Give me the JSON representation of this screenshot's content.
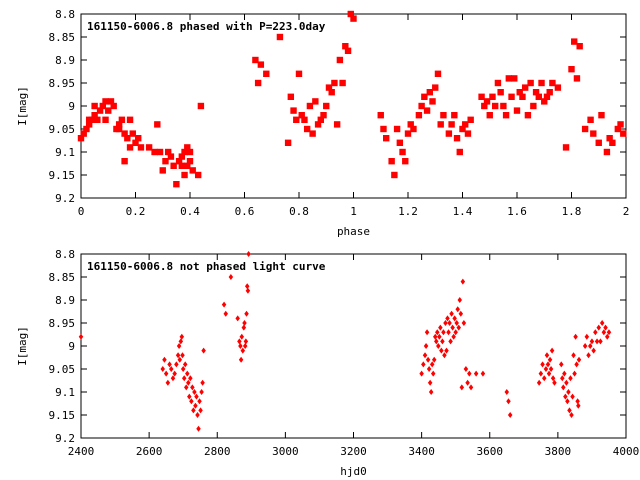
{
  "chart_data": [
    {
      "type": "scatter",
      "title": "161150-6006.8 phased with P=223.0day",
      "xlabel": "phase",
      "ylabel": "I[mag]",
      "xlim": [
        0,
        2
      ],
      "ylim": [
        8.8,
        9.2
      ],
      "y_inverted": true,
      "xticks": [
        "0",
        "0.2",
        "0.4",
        "0.6",
        "0.8",
        "1",
        "1.2",
        "1.4",
        "1.6",
        "1.8",
        "2"
      ],
      "yticks": [
        "8.8",
        "8.85",
        "8.9",
        "8.95",
        "9",
        "9.05",
        "9.1",
        "9.15",
        "9.2"
      ],
      "marker": "filled-square",
      "color": "#ff0000",
      "grid": false,
      "points": [
        [
          0.0,
          9.07
        ],
        [
          0.01,
          9.06
        ],
        [
          0.02,
          9.05
        ],
        [
          0.03,
          9.04
        ],
        [
          0.04,
          9.03
        ],
        [
          0.05,
          9.0
        ],
        [
          0.06,
          9.03
        ],
        [
          0.07,
          9.01
        ],
        [
          0.08,
          9.0
        ],
        [
          0.09,
          8.99
        ],
        [
          0.1,
          9.01
        ],
        [
          0.11,
          8.99
        ],
        [
          0.12,
          9.0
        ],
        [
          0.13,
          9.05
        ],
        [
          0.14,
          9.04
        ],
        [
          0.15,
          9.03
        ],
        [
          0.16,
          9.06
        ],
        [
          0.17,
          9.07
        ],
        [
          0.18,
          9.09
        ],
        [
          0.19,
          9.06
        ],
        [
          0.2,
          9.08
        ],
        [
          0.21,
          9.07
        ],
        [
          0.22,
          9.09
        ],
        [
          0.25,
          9.09
        ],
        [
          0.27,
          9.1
        ],
        [
          0.29,
          9.1
        ],
        [
          0.3,
          9.14
        ],
        [
          0.31,
          9.12
        ],
        [
          0.33,
          9.11
        ],
        [
          0.34,
          9.13
        ],
        [
          0.35,
          9.17
        ],
        [
          0.36,
          9.12
        ],
        [
          0.37,
          9.11
        ],
        [
          0.38,
          9.1
        ],
        [
          0.39,
          9.13
        ],
        [
          0.4,
          9.12
        ],
        [
          0.41,
          9.14
        ],
        [
          0.43,
          9.15
        ],
        [
          0.44,
          9.0
        ],
        [
          0.03,
          9.03
        ],
        [
          0.05,
          9.02
        ],
        [
          0.09,
          9.03
        ],
        [
          0.14,
          9.05
        ],
        [
          0.16,
          9.12
        ],
        [
          0.18,
          9.03
        ],
        [
          0.28,
          9.04
        ],
        [
          0.32,
          9.1
        ],
        [
          0.37,
          9.13
        ],
        [
          0.39,
          9.09
        ],
        [
          0.4,
          9.1
        ],
        [
          0.38,
          9.15
        ],
        [
          0.64,
          8.9
        ],
        [
          0.65,
          8.95
        ],
        [
          0.66,
          8.91
        ],
        [
          0.68,
          8.93
        ],
        [
          0.73,
          8.85
        ],
        [
          0.76,
          9.08
        ],
        [
          0.77,
          8.98
        ],
        [
          0.78,
          9.01
        ],
        [
          0.79,
          9.03
        ],
        [
          0.8,
          8.93
        ],
        [
          0.81,
          9.02
        ],
        [
          0.82,
          9.03
        ],
        [
          0.83,
          9.05
        ],
        [
          0.84,
          9.0
        ],
        [
          0.85,
          9.06
        ],
        [
          0.86,
          8.99
        ],
        [
          0.87,
          9.04
        ],
        [
          0.88,
          9.03
        ],
        [
          0.89,
          9.02
        ],
        [
          0.9,
          9.0
        ],
        [
          0.91,
          8.96
        ],
        [
          0.92,
          8.97
        ],
        [
          0.93,
          8.95
        ],
        [
          0.94,
          9.04
        ],
        [
          0.95,
          8.9
        ],
        [
          0.96,
          8.95
        ],
        [
          0.97,
          8.87
        ],
        [
          0.98,
          8.88
        ],
        [
          0.99,
          8.8
        ],
        [
          1.0,
          8.81
        ],
        [
          1.1,
          9.02
        ],
        [
          1.11,
          9.05
        ],
        [
          1.12,
          9.07
        ],
        [
          1.14,
          9.12
        ],
        [
          1.15,
          9.15
        ],
        [
          1.16,
          9.05
        ],
        [
          1.17,
          9.08
        ],
        [
          1.18,
          9.1
        ],
        [
          1.19,
          9.12
        ],
        [
          1.2,
          9.06
        ],
        [
          1.21,
          9.04
        ],
        [
          1.22,
          9.05
        ],
        [
          1.24,
          9.02
        ],
        [
          1.25,
          9.0
        ],
        [
          1.26,
          8.98
        ],
        [
          1.27,
          9.01
        ],
        [
          1.28,
          8.97
        ],
        [
          1.29,
          8.99
        ],
        [
          1.3,
          8.96
        ],
        [
          1.31,
          8.93
        ],
        [
          1.32,
          9.04
        ],
        [
          1.33,
          9.02
        ],
        [
          1.35,
          9.06
        ],
        [
          1.36,
          9.04
        ],
        [
          1.37,
          9.02
        ],
        [
          1.38,
          9.07
        ],
        [
          1.39,
          9.1
        ],
        [
          1.4,
          9.05
        ],
        [
          1.41,
          9.04
        ],
        [
          1.42,
          9.06
        ],
        [
          1.43,
          9.03
        ],
        [
          1.47,
          8.98
        ],
        [
          1.48,
          9.0
        ],
        [
          1.49,
          8.99
        ],
        [
          1.5,
          9.02
        ],
        [
          1.51,
          8.98
        ],
        [
          1.52,
          9.0
        ],
        [
          1.53,
          8.95
        ],
        [
          1.54,
          8.97
        ],
        [
          1.55,
          9.0
        ],
        [
          1.56,
          9.02
        ],
        [
          1.57,
          8.94
        ],
        [
          1.58,
          8.98
        ],
        [
          1.59,
          8.94
        ],
        [
          1.6,
          9.01
        ],
        [
          1.61,
          8.97
        ],
        [
          1.62,
          8.98
        ],
        [
          1.63,
          8.96
        ],
        [
          1.64,
          9.02
        ],
        [
          1.65,
          8.95
        ],
        [
          1.66,
          9.0
        ],
        [
          1.67,
          8.97
        ],
        [
          1.68,
          8.98
        ],
        [
          1.69,
          8.95
        ],
        [
          1.7,
          8.99
        ],
        [
          1.71,
          8.98
        ],
        [
          1.72,
          8.97
        ],
        [
          1.73,
          8.95
        ],
        [
          1.75,
          8.96
        ],
        [
          1.78,
          9.09
        ],
        [
          1.8,
          8.92
        ],
        [
          1.81,
          8.86
        ],
        [
          1.82,
          8.94
        ],
        [
          1.83,
          8.87
        ],
        [
          1.85,
          9.05
        ],
        [
          1.87,
          9.03
        ],
        [
          1.88,
          9.06
        ],
        [
          1.9,
          9.08
        ],
        [
          1.91,
          9.02
        ],
        [
          1.93,
          9.1
        ],
        [
          1.94,
          9.07
        ],
        [
          1.95,
          9.08
        ],
        [
          1.97,
          9.05
        ],
        [
          1.98,
          9.04
        ],
        [
          1.99,
          9.06
        ]
      ]
    },
    {
      "type": "scatter",
      "title": "161150-6006.8 not phased light curve",
      "xlabel": "hjd0",
      "ylabel": "I[mag]",
      "xlim": [
        2400,
        4000
      ],
      "ylim": [
        8.8,
        9.2
      ],
      "y_inverted": true,
      "xticks": [
        "2400",
        "2600",
        "2800",
        "3000",
        "3200",
        "3400",
        "3600",
        "3800",
        "4000"
      ],
      "yticks": [
        "8.8",
        "8.85",
        "8.9",
        "8.95",
        "9",
        "9.05",
        "9.1",
        "9.15",
        "9.2"
      ],
      "marker": "filled-diamond",
      "color": "#ff0000",
      "grid": false,
      "points": [
        [
          2400,
          8.98
        ],
        [
          2640,
          9.05
        ],
        [
          2645,
          9.03
        ],
        [
          2650,
          9.06
        ],
        [
          2655,
          9.08
        ],
        [
          2660,
          9.04
        ],
        [
          2665,
          9.05
        ],
        [
          2670,
          9.07
        ],
        [
          2675,
          9.06
        ],
        [
          2680,
          9.04
        ],
        [
          2685,
          9.02
        ],
        [
          2688,
          9.0
        ],
        [
          2690,
          9.03
        ],
        [
          2693,
          8.99
        ],
        [
          2696,
          8.98
        ],
        [
          2698,
          9.02
        ],
        [
          2700,
          9.05
        ],
        [
          2703,
          9.07
        ],
        [
          2706,
          9.04
        ],
        [
          2709,
          9.09
        ],
        [
          2712,
          9.06
        ],
        [
          2715,
          9.08
        ],
        [
          2718,
          9.11
        ],
        [
          2721,
          9.07
        ],
        [
          2724,
          9.12
        ],
        [
          2727,
          9.09
        ],
        [
          2730,
          9.14
        ],
        [
          2733,
          9.1
        ],
        [
          2736,
          9.13
        ],
        [
          2739,
          9.11
        ],
        [
          2742,
          9.15
        ],
        [
          2745,
          9.18
        ],
        [
          2748,
          9.12
        ],
        [
          2751,
          9.14
        ],
        [
          2754,
          9.1
        ],
        [
          2757,
          9.08
        ],
        [
          2760,
          9.01
        ],
        [
          2820,
          8.91
        ],
        [
          2825,
          8.93
        ],
        [
          2840,
          8.85
        ],
        [
          2860,
          8.94
        ],
        [
          2865,
          8.99
        ],
        [
          2868,
          9.0
        ],
        [
          2870,
          9.03
        ],
        [
          2872,
          8.98
        ],
        [
          2875,
          9.01
        ],
        [
          2878,
          8.96
        ],
        [
          2880,
          8.95
        ],
        [
          2882,
          9.0
        ],
        [
          2884,
          8.99
        ],
        [
          2886,
          8.93
        ],
        [
          2888,
          8.87
        ],
        [
          2890,
          8.88
        ],
        [
          2892,
          8.8
        ],
        [
          3400,
          9.06
        ],
        [
          3405,
          9.04
        ],
        [
          3410,
          9.02
        ],
        [
          3413,
          9.0
        ],
        [
          3416,
          8.97
        ],
        [
          3419,
          9.03
        ],
        [
          3422,
          9.05
        ],
        [
          3425,
          9.08
        ],
        [
          3428,
          9.1
        ],
        [
          3431,
          9.04
        ],
        [
          3434,
          9.06
        ],
        [
          3437,
          9.03
        ],
        [
          3440,
          8.98
        ],
        [
          3443,
          8.99
        ],
        [
          3446,
          8.97
        ],
        [
          3449,
          9.0
        ],
        [
          3452,
          8.98
        ],
        [
          3455,
          8.96
        ],
        [
          3458,
          9.01
        ],
        [
          3461,
          8.99
        ],
        [
          3464,
          8.97
        ],
        [
          3467,
          9.02
        ],
        [
          3470,
          8.95
        ],
        [
          3473,
          9.01
        ],
        [
          3476,
          8.94
        ],
        [
          3479,
          8.97
        ],
        [
          3482,
          8.95
        ],
        [
          3485,
          8.99
        ],
        [
          3488,
          8.93
        ],
        [
          3491,
          8.96
        ],
        [
          3494,
          8.98
        ],
        [
          3497,
          8.94
        ],
        [
          3500,
          8.97
        ],
        [
          3503,
          8.95
        ],
        [
          3506,
          8.92
        ],
        [
          3509,
          8.96
        ],
        [
          3512,
          8.9
        ],
        [
          3515,
          8.93
        ],
        [
          3518,
          9.09
        ],
        [
          3521,
          8.86
        ],
        [
          3524,
          8.95
        ],
        [
          3530,
          9.05
        ],
        [
          3535,
          9.08
        ],
        [
          3540,
          9.06
        ],
        [
          3545,
          9.09
        ],
        [
          3560,
          9.06
        ],
        [
          3580,
          9.06
        ],
        [
          3650,
          9.1
        ],
        [
          3655,
          9.12
        ],
        [
          3660,
          9.15
        ],
        [
          3745,
          9.08
        ],
        [
          3750,
          9.06
        ],
        [
          3755,
          9.04
        ],
        [
          3760,
          9.07
        ],
        [
          3765,
          9.05
        ],
        [
          3768,
          9.02
        ],
        [
          3771,
          9.04
        ],
        [
          3774,
          9.06
        ],
        [
          3777,
          9.03
        ],
        [
          3780,
          9.05
        ],
        [
          3783,
          9.01
        ],
        [
          3786,
          9.07
        ],
        [
          3790,
          9.08
        ],
        [
          3810,
          9.04
        ],
        [
          3813,
          9.07
        ],
        [
          3816,
          9.09
        ],
        [
          3819,
          9.06
        ],
        [
          3822,
          9.11
        ],
        [
          3825,
          9.08
        ],
        [
          3828,
          9.12
        ],
        [
          3831,
          9.1
        ],
        [
          3834,
          9.14
        ],
        [
          3837,
          9.07
        ],
        [
          3840,
          9.15
        ],
        [
          3843,
          9.11
        ],
        [
          3846,
          9.02
        ],
        [
          3849,
          9.06
        ],
        [
          3852,
          8.98
        ],
        [
          3855,
          9.04
        ],
        [
          3858,
          9.12
        ],
        [
          3860,
          9.13
        ],
        [
          3862,
          9.03
        ],
        [
          3880,
          9.0
        ],
        [
          3885,
          8.98
        ],
        [
          3890,
          9.02
        ],
        [
          3895,
          9.0
        ],
        [
          3900,
          8.99
        ],
        [
          3905,
          9.01
        ],
        [
          3910,
          8.97
        ],
        [
          3915,
          8.99
        ],
        [
          3920,
          8.96
        ],
        [
          3925,
          8.99
        ],
        [
          3930,
          8.95
        ],
        [
          3935,
          8.97
        ],
        [
          3940,
          8.96
        ],
        [
          3945,
          8.98
        ],
        [
          3950,
          8.97
        ]
      ]
    }
  ]
}
